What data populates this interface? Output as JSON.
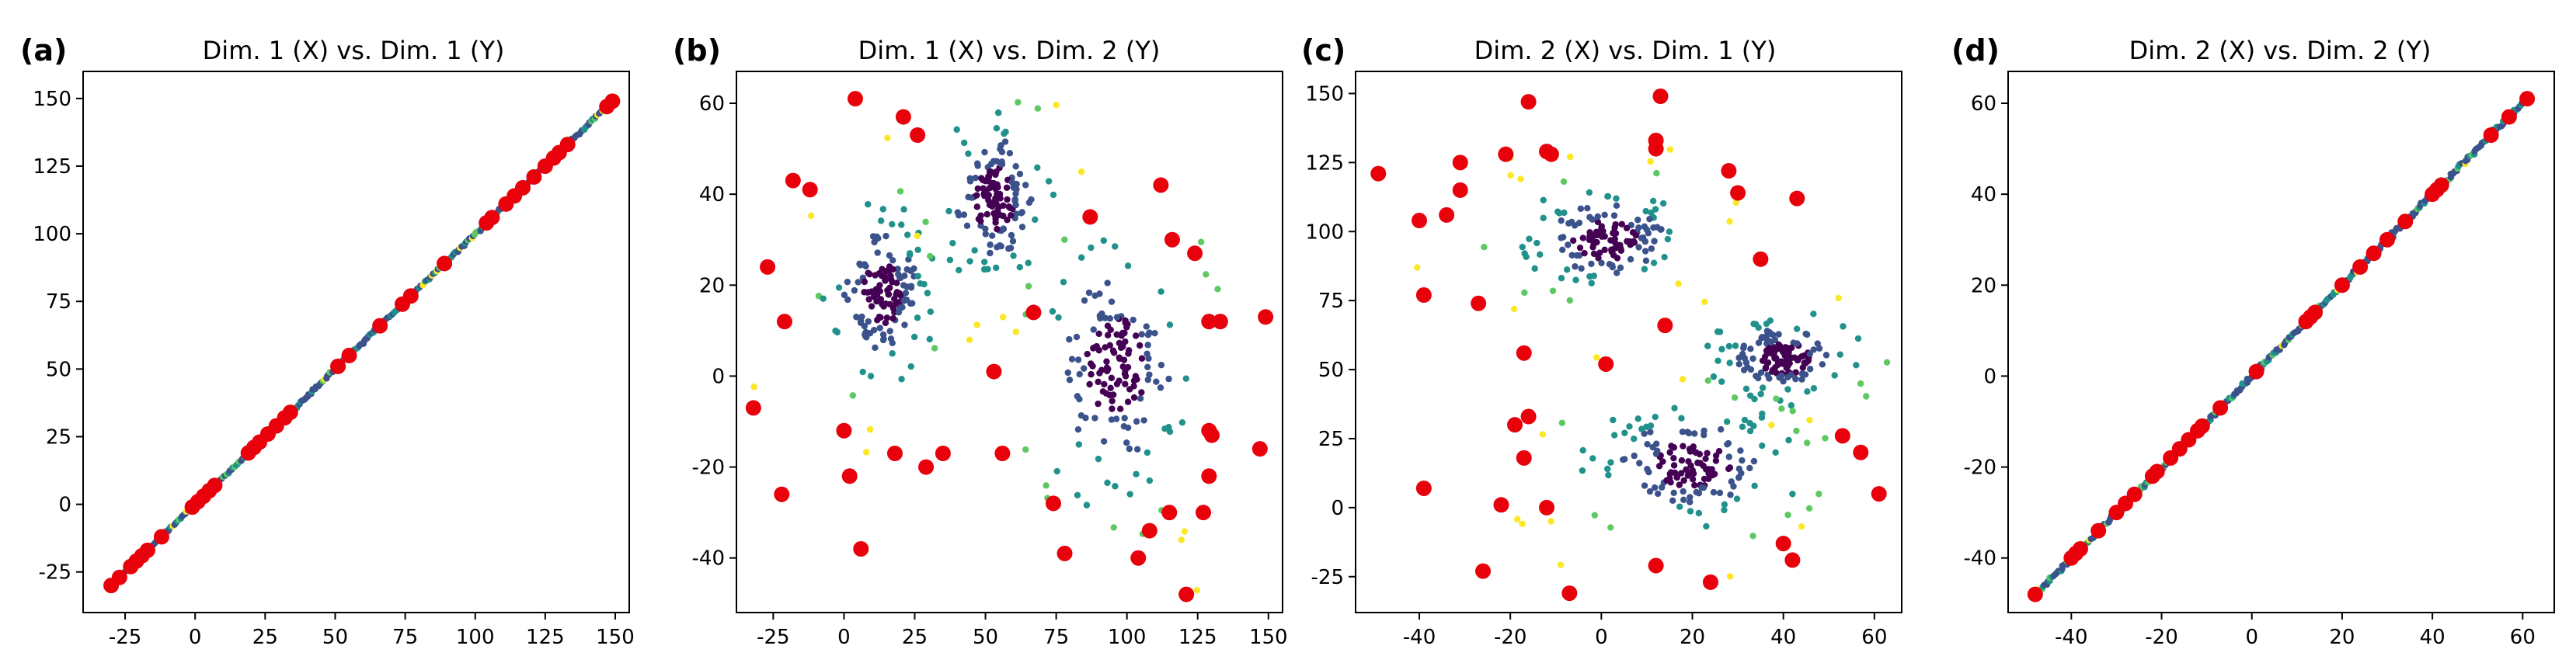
{
  "chart_data": [
    {
      "type": "scatter",
      "letter": "(a)",
      "title": "Dim. 1 (X) vs. Dim. 1 (Y)",
      "xlim": [
        -40,
        155
      ],
      "ylim": [
        -40,
        160
      ],
      "xticks": [
        -25,
        0,
        25,
        50,
        75,
        100,
        125,
        150
      ],
      "yticks": [
        -25,
        0,
        25,
        50,
        75,
        100,
        125,
        150
      ],
      "diagonal": [
        -30,
        150
      ],
      "points": [
        [
          -30,
          -30
        ],
        [
          -27,
          -27
        ],
        [
          -23,
          -23
        ],
        [
          -21,
          -21
        ],
        [
          -19,
          -19
        ],
        [
          -17,
          -17
        ],
        [
          -12,
          -12
        ],
        [
          -1,
          -1
        ],
        [
          1,
          1
        ],
        [
          3,
          3
        ],
        [
          5,
          5
        ],
        [
          7,
          7
        ],
        [
          19,
          19
        ],
        [
          21,
          21
        ],
        [
          23,
          23
        ],
        [
          26,
          26
        ],
        [
          29,
          29
        ],
        [
          32,
          32
        ],
        [
          34,
          34
        ],
        [
          51,
          51
        ],
        [
          55,
          55
        ],
        [
          66,
          66
        ],
        [
          74,
          74
        ],
        [
          77,
          77
        ],
        [
          89,
          89
        ],
        [
          104,
          104
        ],
        [
          106,
          106
        ],
        [
          111,
          111
        ],
        [
          114,
          114
        ],
        [
          117,
          117
        ],
        [
          121,
          121
        ],
        [
          125,
          125
        ],
        [
          128,
          128
        ],
        [
          130,
          130
        ],
        [
          133,
          133
        ],
        [
          147,
          147
        ],
        [
          149,
          149
        ]
      ]
    },
    {
      "type": "scatter",
      "letter": "(b)",
      "title": "Dim. 1 (X) vs. Dim. 2 (Y)",
      "xlim": [
        -38,
        155
      ],
      "ylim": [
        -52,
        67
      ],
      "xticks": [
        -25,
        0,
        25,
        50,
        75,
        100,
        125,
        150
      ],
      "yticks": [
        -40,
        -20,
        0,
        20,
        40,
        60
      ],
      "clusters": [
        {
          "center": [
            13,
            18
          ],
          "spread": [
            6,
            6
          ],
          "count": 160
        },
        {
          "center": [
            53,
            39
          ],
          "spread": [
            6,
            6
          ],
          "count": 160
        },
        {
          "center": [
            96,
            2
          ],
          "spread": [
            9,
            9
          ],
          "count": 170
        }
      ],
      "points": [
        [
          4,
          61
        ],
        [
          21,
          57
        ],
        [
          26,
          53
        ],
        [
          -18,
          43
        ],
        [
          -12,
          41
        ],
        [
          87,
          35
        ],
        [
          112,
          42
        ],
        [
          116,
          30
        ],
        [
          124,
          27
        ],
        [
          -27,
          24
        ],
        [
          -21,
          12
        ],
        [
          129,
          12
        ],
        [
          133,
          12
        ],
        [
          149,
          13
        ],
        [
          67,
          14
        ],
        [
          53,
          1
        ],
        [
          -32,
          -7
        ],
        [
          0,
          -12
        ],
        [
          2,
          -22
        ],
        [
          -22,
          -26
        ],
        [
          18,
          -17
        ],
        [
          29,
          -20
        ],
        [
          35,
          -17
        ],
        [
          56,
          -17
        ],
        [
          74,
          -28
        ],
        [
          78,
          -39
        ],
        [
          6,
          -38
        ],
        [
          104,
          -40
        ],
        [
          108,
          -34
        ],
        [
          115,
          -30
        ],
        [
          127,
          -30
        ],
        [
          129,
          -12
        ],
        [
          130,
          -13
        ],
        [
          129,
          -22
        ],
        [
          147,
          -16
        ],
        [
          121,
          -48
        ]
      ]
    },
    {
      "type": "scatter",
      "letter": "(c)",
      "title": "Dim. 2 (X) vs. Dim. 1 (Y)",
      "xlim": [
        -54,
        66
      ],
      "ylim": [
        -38,
        158
      ],
      "xticks": [
        -40,
        -20,
        0,
        20,
        40,
        60
      ],
      "yticks": [
        -25,
        0,
        25,
        50,
        75,
        100,
        125,
        150
      ],
      "clusters": [
        {
          "center": [
            1,
            97
          ],
          "spread": [
            6,
            6
          ],
          "count": 160
        },
        {
          "center": [
            40,
            54
          ],
          "spread": [
            5,
            5
          ],
          "count": 160
        },
        {
          "center": [
            20,
            16
          ],
          "spread": [
            7,
            7
          ],
          "count": 170
        }
      ],
      "points": [
        [
          -49,
          121
        ],
        [
          -40,
          104
        ],
        [
          -34,
          106
        ],
        [
          -31,
          125
        ],
        [
          -31,
          115
        ],
        [
          -16,
          147
        ],
        [
          -12,
          129
        ],
        [
          -11,
          128
        ],
        [
          -21,
          128
        ],
        [
          12,
          133
        ],
        [
          12,
          130
        ],
        [
          13,
          149
        ],
        [
          28,
          122
        ],
        [
          30,
          114
        ],
        [
          43,
          112
        ],
        [
          35,
          90
        ],
        [
          -39,
          77
        ],
        [
          -27,
          74
        ],
        [
          14,
          66
        ],
        [
          -17,
          56
        ],
        [
          1,
          52
        ],
        [
          53,
          26
        ],
        [
          57,
          20
        ],
        [
          61,
          5
        ],
        [
          -16,
          33
        ],
        [
          -19,
          30
        ],
        [
          -17,
          18
        ],
        [
          -22,
          1
        ],
        [
          -12,
          0
        ],
        [
          -39,
          7
        ],
        [
          -26,
          -23
        ],
        [
          -7,
          -31
        ],
        [
          12,
          -21
        ],
        [
          24,
          -27
        ],
        [
          40,
          -13
        ],
        [
          42,
          -19
        ]
      ]
    },
    {
      "type": "scatter",
      "letter": "(d)",
      "title": "Dim. 2 (X) vs. Dim. 2 (Y)",
      "xlim": [
        -54,
        67
      ],
      "ylim": [
        -52,
        67
      ],
      "xticks": [
        -40,
        -20,
        0,
        20,
        40,
        60
      ],
      "yticks": [
        -40,
        -20,
        0,
        20,
        40,
        60
      ],
      "diagonal": [
        -48,
        61
      ],
      "points": [
        [
          -48,
          -48
        ],
        [
          -40,
          -40
        ],
        [
          -39,
          -39
        ],
        [
          -38,
          -38
        ],
        [
          -34,
          -34
        ],
        [
          -30,
          -30
        ],
        [
          -28,
          -28
        ],
        [
          -26,
          -26
        ],
        [
          -22,
          -22
        ],
        [
          -21,
          -21
        ],
        [
          -18,
          -18
        ],
        [
          -16,
          -16
        ],
        [
          -14,
          -14
        ],
        [
          -12,
          -12
        ],
        [
          -11,
          -11
        ],
        [
          -7,
          -7
        ],
        [
          1,
          1
        ],
        [
          12,
          12
        ],
        [
          13,
          13
        ],
        [
          14,
          14
        ],
        [
          20,
          20
        ],
        [
          24,
          24
        ],
        [
          27,
          27
        ],
        [
          30,
          30
        ],
        [
          34,
          34
        ],
        [
          40,
          40
        ],
        [
          41,
          41
        ],
        [
          42,
          42
        ],
        [
          53,
          53
        ],
        [
          57,
          57
        ],
        [
          61,
          61
        ]
      ]
    }
  ],
  "colors": {
    "outlier": "#e8000b",
    "viridis": [
      "#440154",
      "#3b528b",
      "#21918c",
      "#5ec962",
      "#fde725"
    ]
  }
}
